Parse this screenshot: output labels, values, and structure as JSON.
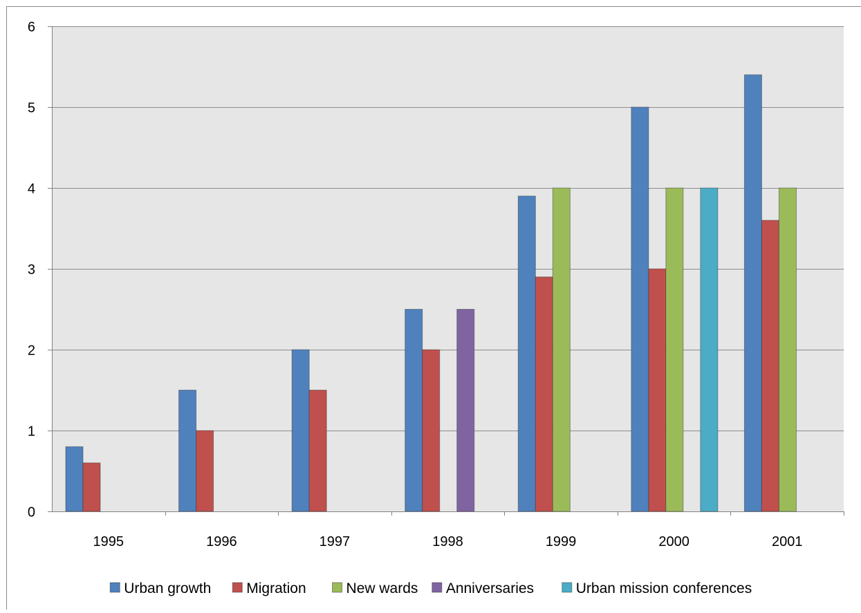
{
  "chart_data": {
    "type": "bar",
    "categories": [
      "1995",
      "1996",
      "1997",
      "1998",
      "1999",
      "2000",
      "2001"
    ],
    "series": [
      {
        "name": "Urban growth",
        "color": "#4F81BD",
        "values": [
          0.8,
          1.5,
          2.0,
          2.5,
          3.9,
          5.0,
          5.4
        ]
      },
      {
        "name": "Migration",
        "color": "#C0504D",
        "values": [
          0.6,
          1.0,
          1.5,
          2.0,
          2.9,
          3.0,
          3.6
        ]
      },
      {
        "name": "New wards",
        "color": "#9BBB59",
        "values": [
          null,
          null,
          null,
          null,
          4.0,
          4.0,
          4.0
        ]
      },
      {
        "name": "Anniversaries",
        "color": "#8064A2",
        "values": [
          null,
          null,
          null,
          2.5,
          null,
          null,
          null
        ]
      },
      {
        "name": "Urban mission conferences",
        "color": "#4BACC6",
        "values": [
          null,
          null,
          null,
          null,
          null,
          4.0,
          null
        ]
      }
    ],
    "yticks": [
      "0",
      "1",
      "2",
      "3",
      "4",
      "5",
      "6"
    ],
    "ylim": [
      0,
      6
    ],
    "grid": true,
    "legend_position": "bottom",
    "plot_background": "#E6E6E6"
  }
}
